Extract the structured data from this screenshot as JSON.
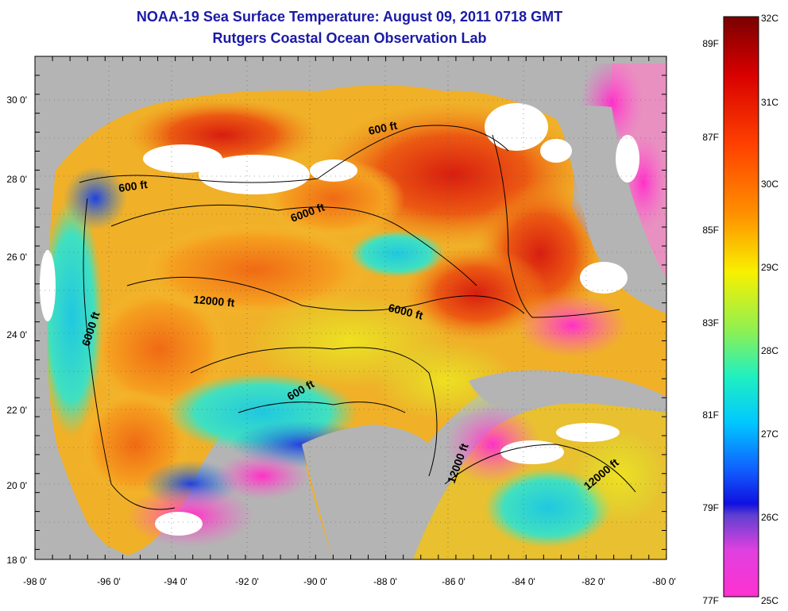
{
  "title": {
    "line1": "NOAA-19 Sea Surface Temperature:  August 09, 2011 0718 GMT",
    "line2": "Rutgers Coastal Ocean Observation Lab"
  },
  "map": {
    "longitude_labels": [
      "-98 0'",
      "-96 0'",
      "-94 0'",
      "-92 0'",
      "-90 0'",
      "-88 0'",
      "-86 0'",
      "-84 0'",
      "-82 0'",
      "-80 0'"
    ],
    "latitude_labels": [
      "30 0'",
      "28 0'",
      "26 0'",
      "24 0'",
      "22 0'",
      "20 0'",
      "18 0'"
    ],
    "contour_labels": [
      "600 ft",
      "600 ft",
      "6000 ft",
      "12000 ft",
      "6000 ft",
      "6000 ft",
      "600 ft",
      "12000 ft",
      "12000 ft"
    ],
    "colors": {
      "land": "#b4b4b4",
      "cloud": "#ffffff",
      "warm": "#e03a10",
      "cool": "#30d0e0"
    }
  },
  "colorbar": {
    "celsius_labels": [
      "32C",
      "31C",
      "30C",
      "29C",
      "28C",
      "27C",
      "26C",
      "25C"
    ],
    "fahrenheit_labels": [
      "89F",
      "87F",
      "85F",
      "83F",
      "81F",
      "79F",
      "77F"
    ]
  }
}
